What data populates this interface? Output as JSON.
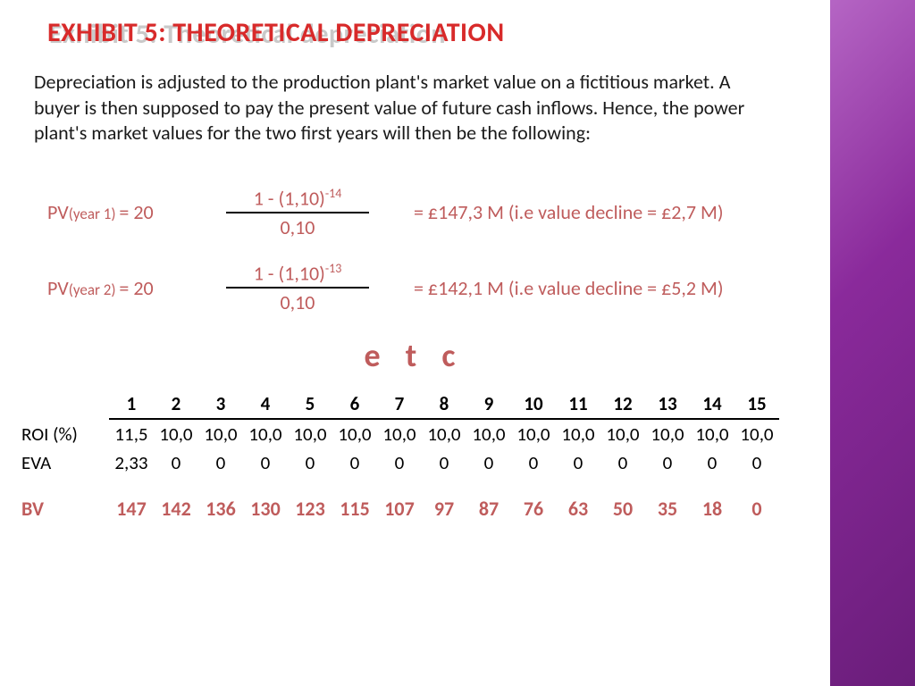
{
  "title_shadow": "Exhibit 5: Theoretical depreciation",
  "title_main": "EXHIBIT 5: THEORETICAL DEPRECIATION",
  "intro": "Depreciation is adjusted to the production plant's market value on a fictitious market. A  buyer is then supposed to pay the present value of future cash inflows. Hence, the power  plant's market values for the two first years will then be the following:",
  "formula1": {
    "label_pre": "PV",
    "label_sub": "(year 1) ",
    "label_post": "= 20",
    "num": "1 - (1,10)",
    "exp": "-14",
    "den": "0,10",
    "result": "= £147,3 M (i.e value decline = £2,7 M)"
  },
  "formula2": {
    "label_pre": "PV",
    "label_sub": "(year 2) ",
    "label_post": "= 20",
    "num": "1 - (1,10)",
    "exp": "-13",
    "den": "0,10",
    "result": "= £142,1 M (i.e value decline = £5,2 M)"
  },
  "etc": "e t c",
  "years": [
    "1",
    "2",
    "3",
    "4",
    "5",
    "6",
    "7",
    "8",
    "9",
    "10",
    "11",
    "12",
    "13",
    "14",
    "15"
  ],
  "roi_label": "ROI (%)",
  "roi": [
    "11,5",
    "10,0",
    "10,0",
    "10,0",
    "10,0",
    "10,0",
    "10,0",
    "10,0",
    "10,0",
    "10,0",
    "10,0",
    "10,0",
    "10,0",
    "10,0",
    "10,0"
  ],
  "eva_label": "EVA",
  "eva": [
    "2,33",
    "0",
    "0",
    "0",
    "0",
    "0",
    "0",
    "0",
    "0",
    "0",
    "0",
    "0",
    "0",
    "0",
    "0"
  ],
  "bv_label": "BV",
  "bv": [
    "147",
    "142",
    "136",
    "130",
    "123",
    "115",
    "107",
    "97",
    "87",
    "76",
    "63",
    "50",
    "35",
    "18",
    "0"
  ],
  "colors": {
    "title": "#d82a2a",
    "shadow": "#c9c9c9",
    "accent": "#bf5c5c",
    "text": "#1a1a1a",
    "purple_band": [
      "#b565c4",
      "#8a2a9b",
      "#6a1d7a"
    ]
  }
}
